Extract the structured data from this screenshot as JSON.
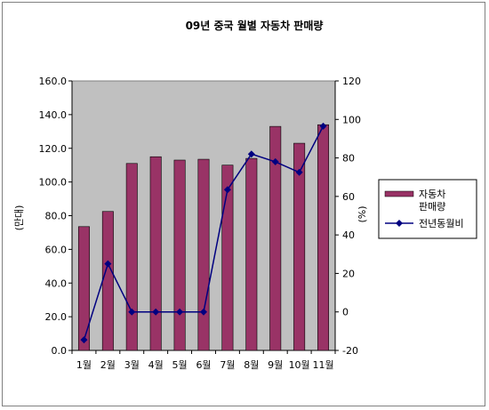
{
  "chart_data": {
    "type": "bar+line",
    "title": "09년 중국 월별 자동차 판매량",
    "categories": [
      "1월",
      "2월",
      "3월",
      "4월",
      "5월",
      "6월",
      "7월",
      "8월",
      "9월",
      "10월",
      "11월"
    ],
    "series": [
      {
        "name": "자동차 판매량",
        "type": "bar",
        "axis": "left",
        "values": [
          73.5,
          82.5,
          111.0,
          115.0,
          113.0,
          113.5,
          110.0,
          114.0,
          133.0,
          123.0,
          134.0
        ],
        "color": "#993366"
      },
      {
        "name": "전년동월비",
        "type": "line",
        "axis": "right",
        "values": [
          -14.5,
          25.0,
          0.0,
          0.0,
          0.0,
          0.0,
          63.5,
          82.0,
          78.0,
          72.5,
          96.5
        ],
        "color": "#000080"
      }
    ],
    "ylabel": "(만대)",
    "y2label": "(%)",
    "ylim": [
      0,
      160
    ],
    "y2lim": [
      -20,
      120
    ],
    "yticks": [
      "0.0",
      "20.0",
      "40.0",
      "60.0",
      "80.0",
      "100.0",
      "120.0",
      "140.0",
      "160.0"
    ],
    "y2ticks": [
      "-20",
      "0",
      "20",
      "40",
      "60",
      "80",
      "100",
      "120"
    ],
    "plot_background": "#c0c0c0",
    "grid": false,
    "legend_position": "right",
    "legend": {
      "bar_label_line1": "자동차",
      "bar_label_line2": "판매량",
      "line_label": "전년동월비"
    }
  }
}
